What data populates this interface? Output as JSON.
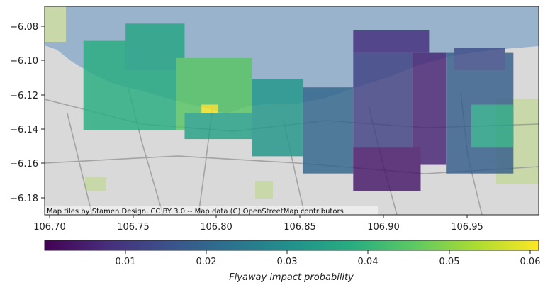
{
  "map": {
    "attribution": "Map tiles by Stamen Design, CC BY 3.0 -- Map data (C) OpenStreetMap contributors",
    "x_ticks": [
      "106.70",
      "106.75",
      "106.80",
      "106.85",
      "106.90",
      "106.95"
    ],
    "y_ticks": [
      "−6.08",
      "−6.10",
      "−6.12",
      "−6.14",
      "−6.16",
      "−6.18"
    ],
    "colors": {
      "sea": "#99b3cc",
      "land": "#d9d9d9",
      "park": "#c8d8a8",
      "road": "#9a9a9a",
      "colormap": "viridis"
    }
  },
  "colorbar": {
    "label": "Flyaway impact probability",
    "ticks": [
      "0.01",
      "0.02",
      "0.03",
      "0.04",
      "0.05",
      "0.06"
    ]
  },
  "chart_data": {
    "type": "heatmap",
    "xlim": [
      106.697,
      106.99
    ],
    "ylim": [
      -6.189,
      -6.068
    ],
    "value_range": [
      0.0,
      0.061
    ],
    "colormap": "viridis",
    "regions": [
      {
        "lon": [
          106.72,
          106.775
        ],
        "lat": [
          -6.14,
          -6.088
        ],
        "value": 0.038
      },
      {
        "lon": [
          106.745,
          106.78
        ],
        "lat": [
          -6.105,
          -6.078
        ],
        "value": 0.036
      },
      {
        "lon": [
          106.775,
          106.82
        ],
        "lat": [
          -6.14,
          -6.098
        ],
        "value": 0.045
      },
      {
        "lon": [
          106.79,
          106.8
        ],
        "lat": [
          -6.13,
          -6.125
        ],
        "value": 0.06
      },
      {
        "lon": [
          106.78,
          106.82
        ],
        "lat": [
          -6.145,
          -6.13
        ],
        "value": 0.035
      },
      {
        "lon": [
          106.82,
          106.85
        ],
        "lat": [
          -6.155,
          -6.11
        ],
        "value": 0.032
      },
      {
        "lon": [
          106.85,
          106.88
        ],
        "lat": [
          -6.165,
          -6.115
        ],
        "value": 0.02
      },
      {
        "lon": [
          106.88,
          106.915
        ],
        "lat": [
          -6.165,
          -6.095
        ],
        "value": 0.012
      },
      {
        "lon": [
          106.915,
          106.935
        ],
        "lat": [
          -6.16,
          -6.095
        ],
        "value": 0.006
      },
      {
        "lon": [
          106.935,
          106.975
        ],
        "lat": [
          -6.165,
          -6.095
        ],
        "value": 0.018
      },
      {
        "lon": [
          106.88,
          106.92
        ],
        "lat": [
          -6.175,
          -6.15
        ],
        "value": 0.004
      },
      {
        "lon": [
          106.95,
          106.975
        ],
        "lat": [
          -6.15,
          -6.125
        ],
        "value": 0.035
      },
      {
        "lon": [
          106.88,
          106.925
        ],
        "lat": [
          -6.095,
          -6.082
        ],
        "value": 0.008
      },
      {
        "lon": [
          106.94,
          106.97
        ],
        "lat": [
          -6.105,
          -6.092
        ],
        "value": 0.014
      }
    ]
  }
}
